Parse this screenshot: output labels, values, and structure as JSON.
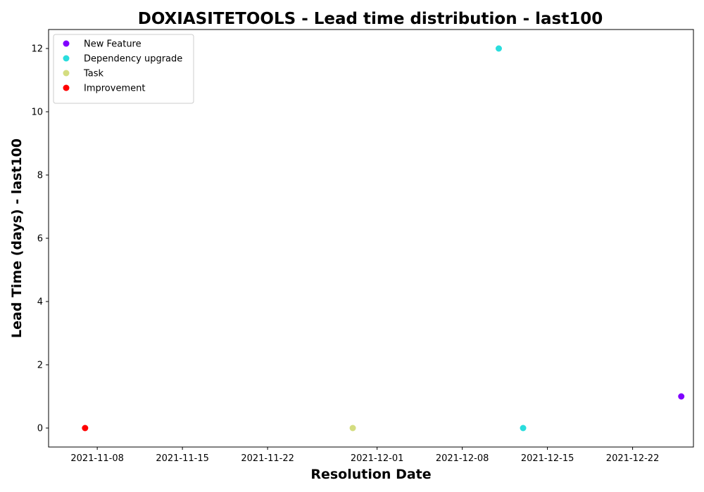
{
  "chart_data": {
    "type": "scatter",
    "title": "DOXIASITETOOLS - Lead time distribution - last100",
    "xlabel": "Resolution Date",
    "ylabel": "Lead Time (days) - last100",
    "xlim": [
      "2021-11-04",
      "2021-12-27"
    ],
    "ylim": [
      -0.6,
      12.6
    ],
    "x_ticks": [
      "2021-11-08",
      "2021-11-15",
      "2021-11-22",
      "2021-12-01",
      "2021-12-08",
      "2021-12-15",
      "2021-12-22"
    ],
    "y_ticks": [
      0,
      2,
      4,
      6,
      8,
      10,
      12
    ],
    "grid": false,
    "legend_position": "top-left",
    "series": [
      {
        "name": "New Feature",
        "color": "#8000ff",
        "points": [
          {
            "x": "2021-12-26",
            "y": 1
          }
        ]
      },
      {
        "name": "Dependency upgrade",
        "color": "#2adddd",
        "points": [
          {
            "x": "2021-12-11",
            "y": 12
          },
          {
            "x": "2021-12-13",
            "y": 0
          }
        ]
      },
      {
        "name": "Task",
        "color": "#d4dd80",
        "points": [
          {
            "x": "2021-11-29",
            "y": 0
          }
        ]
      },
      {
        "name": "Improvement",
        "color": "#ff0000",
        "points": [
          {
            "x": "2021-11-07",
            "y": 0
          }
        ]
      }
    ]
  }
}
